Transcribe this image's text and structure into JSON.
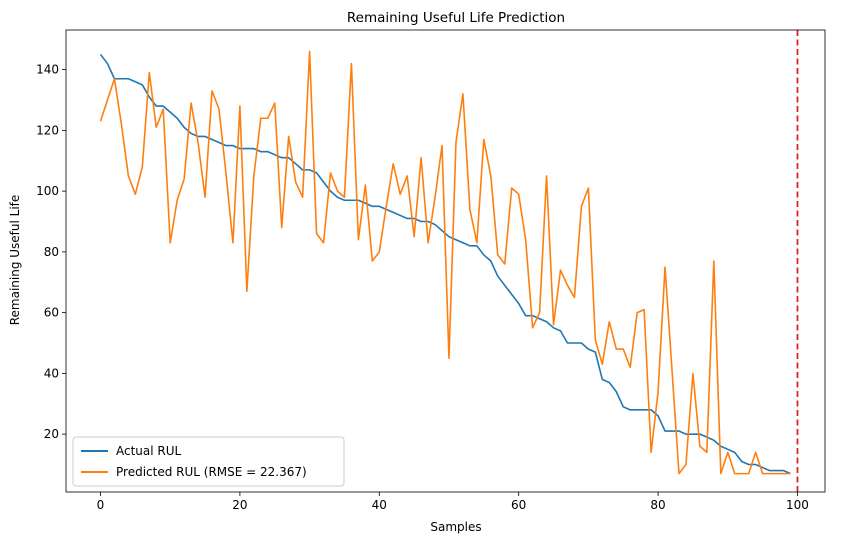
{
  "chart_data": {
    "type": "line",
    "title": "Remaining Useful Life Prediction",
    "xlabel": "Samples",
    "ylabel": "Remaining Useful Life",
    "xlim": [
      -4.95,
      103.95
    ],
    "ylim": [
      0.95,
      153.05
    ],
    "xticks": [
      0,
      20,
      40,
      60,
      80,
      100
    ],
    "yticks": [
      20,
      40,
      60,
      80,
      100,
      120,
      140
    ],
    "grid": false,
    "legend_position": "lower-left",
    "vline": {
      "x": 100,
      "color": "#d62728",
      "style": "dashed"
    },
    "series": [
      {
        "name": "Actual RUL",
        "color": "#1f77b4",
        "values": [
          145,
          142,
          137,
          137,
          137,
          136,
          135,
          131,
          128,
          128,
          126,
          124,
          121,
          119,
          118,
          118,
          117,
          116,
          115,
          115,
          114,
          114,
          114,
          113,
          113,
          112,
          111,
          111,
          109,
          107,
          107,
          106,
          103,
          100,
          98,
          97,
          97,
          97,
          96,
          95,
          95,
          94,
          93,
          92,
          91,
          91,
          90,
          90,
          89,
          87,
          85,
          84,
          83,
          82,
          82,
          79,
          77,
          72,
          69,
          66,
          63,
          59,
          59,
          58,
          57,
          55,
          54,
          50,
          50,
          50,
          48,
          47,
          38,
          37,
          34,
          29,
          28,
          28,
          28,
          28,
          26,
          21,
          21,
          21,
          20,
          20,
          20,
          19,
          18,
          16,
          15,
          14,
          11,
          10,
          10,
          9,
          8,
          8,
          8,
          7
        ]
      },
      {
        "name": "Predicted RUL (RMSE = 22.367)",
        "color": "#ff7f0e",
        "values": [
          123,
          130,
          137,
          122,
          105,
          99,
          108,
          139,
          121,
          127,
          83,
          97,
          104,
          129,
          116,
          98,
          133,
          127,
          106,
          83,
          128,
          67,
          105,
          124,
          124,
          129,
          88,
          118,
          103,
          98,
          146,
          86,
          83,
          106,
          100,
          98,
          142,
          84,
          102,
          77,
          80,
          95,
          109,
          99,
          105,
          85,
          111,
          83,
          98,
          115,
          45,
          116,
          132,
          94,
          83,
          117,
          105,
          79,
          76,
          101,
          99,
          84,
          55,
          60,
          105,
          56,
          74,
          69,
          65,
          95,
          101,
          51,
          43,
          57,
          48,
          48,
          42,
          60,
          61,
          14,
          34,
          75,
          41,
          7,
          10,
          40,
          16,
          14,
          77,
          7,
          14,
          7,
          7,
          7,
          14,
          7,
          7,
          7,
          7,
          7
        ]
      }
    ]
  }
}
